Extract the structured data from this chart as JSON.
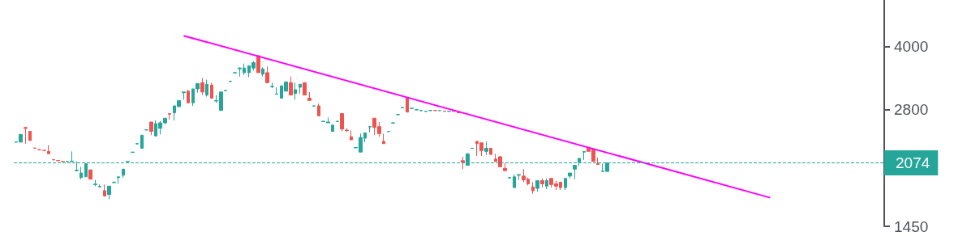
{
  "chart_data": {
    "type": "candlestick",
    "categories": [
      null,
      null,
      null,
      null,
      null,
      null,
      null,
      null,
      null,
      null,
      null,
      null,
      null,
      null,
      null,
      null,
      null,
      null,
      null,
      null,
      null,
      null,
      null,
      null,
      null,
      null,
      null,
      null,
      null,
      null,
      null,
      null,
      null,
      null,
      null,
      null,
      null,
      null,
      null,
      null,
      null,
      null,
      null,
      null,
      null,
      null,
      null,
      null,
      null,
      null,
      null,
      null,
      null,
      null,
      null,
      null,
      null,
      null,
      null,
      null,
      null,
      null,
      null,
      null,
      null,
      null,
      null,
      null,
      null,
      null,
      null,
      null,
      null,
      null,
      null,
      null,
      null,
      null,
      null,
      null,
      null,
      null,
      null,
      null,
      null,
      null,
      null,
      null,
      null,
      null,
      null,
      null,
      null,
      null,
      null,
      null,
      null,
      null,
      null,
      null,
      null,
      null,
      null,
      null,
      null,
      null,
      null,
      null,
      null,
      null,
      null,
      null,
      null,
      null,
      null,
      null,
      null,
      null,
      null,
      null,
      null,
      null,
      null,
      null,
      null,
      null,
      null,
      null,
      null,
      null,
      null,
      null,
      null,
      null,
      null,
      null,
      null,
      null,
      null,
      null,
      null,
      null,
      null,
      null,
      null,
      null,
      null,
      null,
      null,
      null,
      null,
      null,
      null,
      null,
      null,
      null,
      null,
      null,
      null,
      null,
      null,
      null,
      null,
      null,
      null,
      null,
      null,
      null,
      null,
      null,
      null,
      null,
      null,
      null,
      null,
      null,
      null,
      null,
      null,
      null,
      null,
      null,
      null,
      null,
      null,
      null,
      null
    ],
    "ohlc": [
      [
        2330,
        2340,
        2325,
        2335
      ],
      [
        2332,
        2436,
        2332,
        2436
      ],
      [
        2531,
        2544,
        2312,
        2520
      ],
      [
        2478,
        2478,
        2353,
        2353
      ],
      [
        2255,
        2260,
        2248,
        2253
      ],
      [
        2235,
        2240,
        2228,
        2233
      ],
      [
        2225,
        2230,
        2218,
        2223
      ],
      [
        2213,
        2292,
        2184,
        2184
      ],
      [
        2112,
        2117,
        2105,
        2110
      ],
      [
        2102,
        2107,
        2095,
        2100
      ],
      [
        2093,
        2098,
        2086,
        2091
      ],
      [
        2091,
        2096,
        2086,
        2093
      ],
      [
        2091,
        2213,
        2082,
        2095
      ],
      [
        1985,
        2091,
        1980,
        1990
      ],
      [
        1909,
        2029,
        1892,
        1959
      ],
      [
        1917,
        2064,
        1917,
        2064
      ],
      [
        1994,
        1994,
        1892,
        1892
      ],
      [
        1835,
        1884,
        1819,
        1840
      ],
      [
        1811,
        1835,
        1804,
        1816
      ],
      [
        1773,
        1835,
        1715,
        1720
      ],
      [
        1735,
        1819,
        1690,
        1819
      ],
      [
        1855,
        1865,
        1850,
        1860
      ],
      [
        1909,
        1917,
        1843,
        1917
      ],
      [
        1934,
        2002,
        1909,
        2002
      ],
      [
        2088,
        2095,
        2085,
        2091
      ],
      [
        2200,
        2208,
        2196,
        2204
      ],
      [
        2308,
        2316,
        2304,
        2312
      ],
      [
        2253,
        2425,
        2253,
        2425
      ],
      [
        2496,
        2505,
        2492,
        2500
      ],
      [
        2612,
        2612,
        2425,
        2478
      ],
      [
        2415,
        2635,
        2415,
        2589
      ],
      [
        2520,
        2623,
        2436,
        2600
      ],
      [
        2600,
        2669,
        2578,
        2669
      ],
      [
        2739,
        2745,
        2646,
        2730
      ],
      [
        2751,
        2861,
        2635,
        2861
      ],
      [
        2849,
        2949,
        2849,
        2949
      ],
      [
        3080,
        3094,
        2962,
        3094
      ],
      [
        3108,
        3135,
        2911,
        2911
      ],
      [
        2911,
        3149,
        2861,
        3149
      ],
      [
        3149,
        3246,
        3081,
        3246
      ],
      [
        3261,
        3347,
        3041,
        3094
      ],
      [
        3041,
        3318,
        3015,
        3232
      ],
      [
        3218,
        3261,
        2988,
        2988
      ],
      [
        2940,
        3041,
        2911,
        2949
      ],
      [
        2788,
        3094,
        2788,
        3094
      ],
      [
        3115,
        3128,
        3108,
        3121
      ],
      [
        3283,
        3296,
        3275,
        3289
      ],
      [
        3445,
        3460,
        3436,
        3451
      ],
      [
        3526,
        3557,
        3376,
        3542
      ],
      [
        3451,
        3633,
        3406,
        3542
      ],
      [
        3451,
        3588,
        3362,
        3588
      ],
      [
        3542,
        3682,
        3496,
        3651
      ],
      [
        3797,
        3797,
        3451,
        3451
      ],
      [
        3421,
        3557,
        3376,
        3526
      ],
      [
        3451,
        3573,
        3261,
        3261
      ],
      [
        3190,
        3261,
        3163,
        3195
      ],
      [
        3054,
        3177,
        3050,
        3060
      ],
      [
        2988,
        3204,
        2988,
        3204
      ],
      [
        3108,
        3275,
        3108,
        3275
      ],
      [
        3261,
        3376,
        3041,
        3041
      ],
      [
        3067,
        3261,
        2962,
        3135
      ],
      [
        3177,
        3232,
        3067,
        3232
      ],
      [
        3261,
        3261,
        3041,
        3041
      ],
      [
        2988,
        3094,
        2949,
        2949
      ],
      [
        2855,
        2868,
        2849,
        2861
      ],
      [
        2861,
        2899,
        2704,
        2704
      ],
      [
        2618,
        2628,
        2612,
        2623
      ],
      [
        2600,
        2681,
        2600,
        2612
      ],
      [
        2478,
        2567,
        2478,
        2567
      ],
      [
        2618,
        2628,
        2612,
        2623
      ],
      [
        2739,
        2739,
        2478,
        2511
      ],
      [
        2495,
        2522,
        2467,
        2489
      ],
      [
        2404,
        2489,
        2362,
        2362
      ],
      [
        2258,
        2267,
        2253,
        2262
      ],
      [
        2204,
        2446,
        2204,
        2394
      ],
      [
        2383,
        2457,
        2332,
        2457
      ],
      [
        2540,
        2556,
        2467,
        2544
      ],
      [
        2669,
        2669,
        2425,
        2533
      ],
      [
        2544,
        2612,
        2404,
        2446
      ],
      [
        2342,
        2446,
        2312,
        2312
      ],
      [
        2474,
        2483,
        2470,
        2478
      ],
      [
        2595,
        2605,
        2590,
        2600
      ],
      [
        2722,
        2733,
        2716,
        2727
      ],
      [
        2831,
        2842,
        2825,
        2836
      ],
      [
        3001,
        3001,
        2763,
        2763
      ],
      [
        2820,
        2830,
        2815,
        2824
      ],
      [
        2796,
        2805,
        2792,
        2800
      ],
      [
        2784,
        2792,
        2780,
        2788
      ],
      [
        2772,
        2780,
        2768,
        2776
      ],
      [
        2786,
        2792,
        2780,
        2788
      ],
      [
        2788,
        2792,
        2782,
        2786
      ],
      [
        2786,
        2792,
        2780,
        2788
      ],
      [
        2776,
        2782,
        2770,
        2774
      ],
      [
        2774,
        2780,
        2768,
        2776
      ],
      [
        2776,
        2782,
        2770,
        2774
      ],
      [
        2755,
        2760,
        2745,
        2751
      ],
      [
        2100,
        2147,
        2002,
        2082
      ],
      [
        2046,
        2184,
        2046,
        2184
      ],
      [
        2250,
        2258,
        2245,
        2253
      ],
      [
        2342,
        2342,
        2156,
        2312
      ],
      [
        2322,
        2322,
        2156,
        2223
      ],
      [
        2213,
        2342,
        2165,
        2253
      ],
      [
        2253,
        2253,
        2175,
        2175
      ],
      [
        2119,
        2184,
        2091,
        2091
      ],
      [
        2147,
        2156,
        2029,
        2029
      ],
      [
        2011,
        2073,
        1985,
        1985
      ],
      [
        1905,
        1913,
        1900,
        1909
      ],
      [
        1804,
        1942,
        1804,
        1917
      ],
      [
        1934,
        1942,
        1884,
        1942
      ],
      [
        1925,
        2002,
        1860,
        1884
      ],
      [
        1892,
        1909,
        1827,
        1843
      ],
      [
        1811,
        1860,
        1742,
        1773
      ],
      [
        1796,
        1876,
        1765,
        1876
      ],
      [
        1876,
        1900,
        1804,
        1843
      ],
      [
        1819,
        1900,
        1788,
        1876
      ],
      [
        1900,
        1900,
        1804,
        1835
      ],
      [
        1843,
        1876,
        1780,
        1819
      ],
      [
        1860,
        1860,
        1780,
        1804
      ],
      [
        1804,
        1900,
        1780,
        1900
      ],
      [
        1925,
        1959,
        1900,
        1959
      ],
      [
        2002,
        2046,
        1892,
        2046
      ],
      [
        2082,
        2128,
        2037,
        2128
      ],
      [
        2204,
        2213,
        2110,
        2213
      ],
      [
        2253,
        2262,
        2213,
        2213
      ],
      [
        2243,
        2243,
        2091,
        2091
      ],
      [
        2064,
        2137,
        2055,
        2055
      ],
      [
        1976,
        2064,
        1976,
        1980
      ],
      [
        1976,
        2073,
        1976,
        2073
      ],
      null,
      null,
      null,
      null,
      null,
      null,
      null,
      null,
      null,
      null,
      null,
      null,
      null,
      null,
      null,
      null,
      null,
      null,
      null,
      null,
      null,
      null,
      null,
      null,
      null,
      null,
      null,
      null,
      null,
      null,
      null,
      null,
      null,
      null,
      null,
      null,
      null,
      null,
      null,
      null,
      null,
      null,
      null,
      null,
      null,
      null,
      null,
      null,
      null,
      null,
      null,
      null,
      null,
      null,
      null,
      null,
      null,
      null,
      null
    ],
    "series": [
      {
        "type": "line",
        "color": "#ff00ff",
        "values": [
          null,
          null,
          null,
          null,
          null,
          null,
          null,
          null,
          null,
          null,
          null,
          null,
          null,
          null,
          null,
          null,
          null,
          null,
          null,
          null,
          null,
          null,
          null,
          null,
          null,
          null,
          null,
          null,
          null,
          null,
          null,
          null,
          null,
          null,
          null,
          null,
          4251,
          null,
          null,
          null,
          null,
          null,
          null,
          null,
          null,
          null,
          null,
          null,
          null,
          null,
          null,
          null,
          null,
          null,
          null,
          null,
          null,
          null,
          null,
          null,
          null,
          null,
          null,
          null,
          null,
          null,
          null,
          null,
          null,
          null,
          null,
          null,
          null,
          null,
          null,
          null,
          null,
          null,
          null,
          null,
          null,
          null,
          null,
          null,
          null,
          null,
          null,
          null,
          null,
          null,
          null,
          null,
          null,
          null,
          null,
          null,
          null,
          null,
          null,
          null,
          null,
          null,
          null,
          null,
          null,
          null,
          null,
          null,
          null,
          null,
          null,
          null,
          null,
          null,
          null,
          null,
          null,
          null,
          null,
          null,
          null,
          null,
          null,
          null,
          null,
          null,
          null,
          null,
          null,
          null,
          null,
          null,
          null,
          null,
          null,
          null,
          null,
          null,
          null,
          null,
          null,
          null,
          null,
          null,
          null,
          null,
          null,
          null,
          null,
          null,
          null,
          null,
          null,
          null,
          null,
          null,
          null,
          null,
          null,
          null,
          null,
          null,
          1704,
          null,
          null,
          null,
          null,
          null,
          null,
          null,
          null,
          null,
          null,
          null,
          null,
          null,
          null,
          null,
          null,
          null,
          null,
          null,
          null,
          null,
          null,
          null,
          null
        ]
      }
    ],
    "ylim": [
      1450,
      5200
    ],
    "yticks": [
      1450,
      2800,
      4000
    ],
    "log": true,
    "grid": false,
    "ref_lines": [
      {
        "axis": "y",
        "value": 2074,
        "label": "2074",
        "color": "#26a69a",
        "line_style": "dashed"
      }
    ]
  }
}
